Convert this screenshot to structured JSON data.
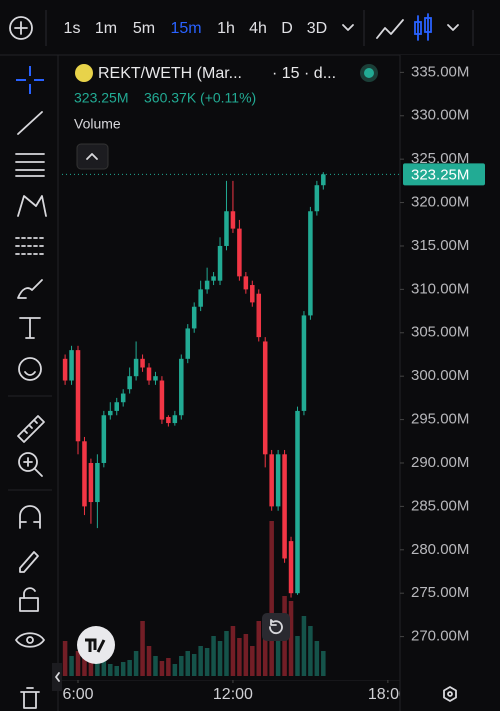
{
  "toolbar": {
    "intervals": [
      "1s",
      "1m",
      "5m",
      "15m",
      "1h",
      "4h",
      "D",
      "3D"
    ],
    "active": 3
  },
  "legend": {
    "symbol": "REKT/WETH (Mar...",
    "meta": "· 15 · d...",
    "price": "323.25M",
    "change": "360.37K (+0.11%)",
    "indicator": "Volume"
  },
  "chart_data": {
    "type": "candlestick",
    "x": [
      5.5,
      5.75,
      6,
      6.25,
      6.5,
      6.75,
      7,
      7.25,
      7.5,
      7.75,
      8,
      8.25,
      8.5,
      8.75,
      9,
      9.25,
      9.5,
      9.75,
      10,
      10.25,
      10.5,
      10.75,
      11,
      11.25,
      11.5,
      11.75,
      12,
      12.25,
      12.5,
      12.75,
      13,
      13.25,
      13.5,
      13.75,
      14,
      14.25,
      14.5,
      14.75,
      15,
      15.25,
      15.5
    ],
    "open": [
      302,
      299.5,
      303,
      292.5,
      290,
      285.5,
      290,
      295.5,
      296,
      297,
      298.5,
      300,
      302,
      301,
      299.5,
      299.5,
      295.3,
      294.6,
      295.5,
      302,
      305.5,
      308,
      310,
      311,
      311,
      315,
      319,
      317,
      311.5,
      310.5,
      309.5,
      304,
      291,
      285,
      291,
      281,
      275,
      296,
      307,
      319,
      322
    ],
    "high": [
      302.5,
      303.5,
      303.5,
      293,
      290.5,
      291,
      296,
      297,
      297.5,
      298.5,
      301,
      304,
      302.5,
      301.5,
      300.5,
      300,
      295.5,
      296,
      302.5,
      306,
      308.5,
      311,
      312.5,
      312,
      316,
      322.5,
      322.5,
      318,
      312,
      311,
      310,
      304.5,
      291.5,
      291.5,
      291.5,
      281.5,
      296.5,
      307.5,
      319.5,
      322.5,
      323.5
    ],
    "low": [
      299,
      299,
      291,
      284,
      283,
      282.5,
      289.5,
      295,
      295.5,
      296.5,
      298,
      299.5,
      300.5,
      299,
      299,
      294.5,
      294.2,
      294.3,
      295,
      301.5,
      305,
      307.5,
      309.5,
      310.5,
      310.5,
      314.5,
      316.5,
      311,
      309.5,
      308,
      304,
      289.5,
      284.5,
      284.5,
      278.5,
      274.5,
      274.8,
      295.5,
      306.5,
      318.5,
      321.5
    ],
    "close": [
      299.5,
      303,
      292.5,
      285,
      285.5,
      290,
      295.5,
      296,
      297,
      298,
      300,
      302,
      301,
      299.5,
      300,
      295,
      294.6,
      295.5,
      302,
      305.5,
      308,
      310,
      311,
      311.5,
      315,
      319,
      317,
      311.5,
      310,
      308.5,
      304.5,
      291,
      285,
      291,
      279,
      275,
      296,
      307,
      319,
      322,
      323.25
    ],
    "volume": [
      35,
      20,
      25,
      30,
      18,
      22,
      15,
      12,
      10,
      14,
      16,
      25,
      55,
      30,
      20,
      15,
      18,
      12,
      20,
      25,
      22,
      30,
      28,
      40,
      35,
      45,
      50,
      38,
      42,
      30,
      55,
      60,
      155,
      45,
      80,
      75,
      40,
      60,
      50,
      35,
      25
    ],
    "up_color": "#22ab94",
    "down_color": "#f23645",
    "xlim": [
      5.38,
      18.47
    ],
    "xticks": [
      {
        "value": 6,
        "label": "6:00"
      },
      {
        "value": 12,
        "label": "12:00"
      },
      {
        "value": 18,
        "label": "18:00"
      }
    ],
    "ylim": [
      265,
      337
    ],
    "yticks": [
      {
        "value": 270,
        "label": "270.00M"
      },
      {
        "value": 275,
        "label": "275.00M"
      },
      {
        "value": 280,
        "label": "280.00M"
      },
      {
        "value": 285,
        "label": "285.00M"
      },
      {
        "value": 290,
        "label": "290.00M"
      },
      {
        "value": 295,
        "label": "295.00M"
      },
      {
        "value": 300,
        "label": "300.00M"
      },
      {
        "value": 305,
        "label": "305.00M"
      },
      {
        "value": 310,
        "label": "310.00M"
      },
      {
        "value": 315,
        "label": "315.00M"
      },
      {
        "value": 320,
        "label": "320.00M"
      },
      {
        "value": 325,
        "label": "325.00M"
      },
      {
        "value": 330,
        "label": "330.00M"
      },
      {
        "value": 335,
        "label": "335.00M"
      }
    ],
    "last_price": {
      "value": 323.25,
      "label": "323.25M"
    }
  }
}
